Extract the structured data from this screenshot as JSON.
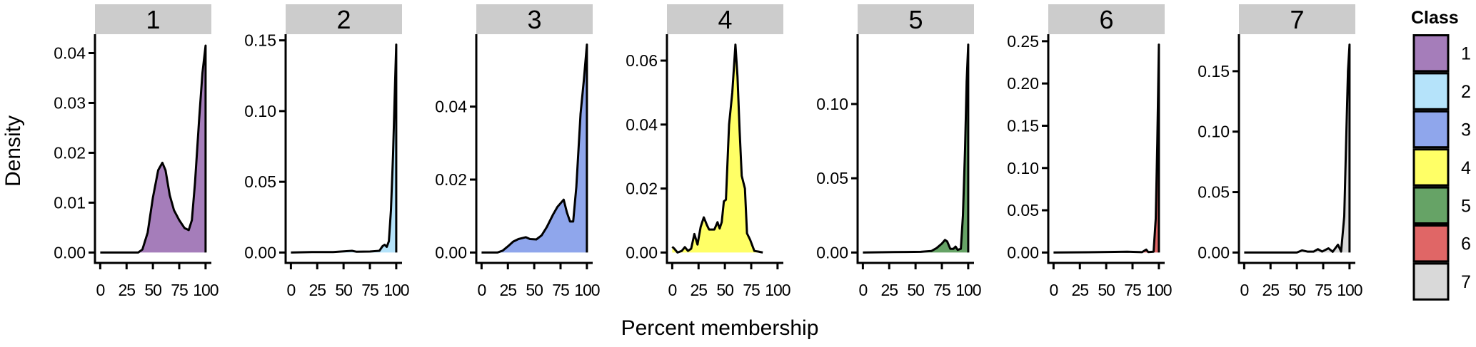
{
  "chart_data": {
    "type": "area",
    "subtype": "faceted density",
    "xlabel": "Percent membership",
    "ylabel": "Density",
    "grid": false,
    "legend": {
      "title": "Class",
      "placement": "right",
      "entries": [
        {
          "label": "1",
          "color": "#A57DBA"
        },
        {
          "label": "2",
          "color": "#B5E3FA"
        },
        {
          "label": "3",
          "color": "#8FA6EC"
        },
        {
          "label": "4",
          "color": "#FFFF66"
        },
        {
          "label": "5",
          "color": "#66A366"
        },
        {
          "label": "6",
          "color": "#E06666"
        },
        {
          "label": "7",
          "color": "#D9D9D9"
        }
      ]
    },
    "xlim": [
      0,
      100
    ],
    "xticks": [
      "0",
      "25",
      "50",
      "75",
      "100"
    ],
    "facets": [
      {
        "label": "1",
        "color": "#A57DBA",
        "ylim": [
          0,
          0.0417
        ],
        "yticks": [
          "0.00",
          "0.01",
          "0.02",
          "0.03",
          "0.04"
        ],
        "yvals": [
          0,
          0.01,
          0.02,
          0.03,
          0.04
        ],
        "points": [
          [
            0,
            0
          ],
          [
            36,
            0
          ],
          [
            40,
            0.0006
          ],
          [
            45,
            0.004
          ],
          [
            50,
            0.011
          ],
          [
            55,
            0.0165
          ],
          [
            59,
            0.018
          ],
          [
            62,
            0.0165
          ],
          [
            66,
            0.0115
          ],
          [
            70,
            0.0085
          ],
          [
            75,
            0.0065
          ],
          [
            80,
            0.0049
          ],
          [
            84,
            0.0045
          ],
          [
            87,
            0.0065
          ],
          [
            90,
            0.014
          ],
          [
            94,
            0.027
          ],
          [
            97,
            0.036
          ],
          [
            100,
            0.0415
          ]
        ]
      },
      {
        "label": "2",
        "color": "#B5E3FA",
        "ylim": [
          0,
          0.147
        ],
        "yticks": [
          "0.00",
          "0.05",
          "0.10",
          "0.15"
        ],
        "yvals": [
          0,
          0.05,
          0.1,
          0.15
        ],
        "points": [
          [
            0,
            0
          ],
          [
            20,
            0.0003
          ],
          [
            40,
            0.0003
          ],
          [
            58,
            0.0012
          ],
          [
            62,
            0.0006
          ],
          [
            75,
            0.0007
          ],
          [
            84,
            0.0012
          ],
          [
            87,
            0.0045
          ],
          [
            89,
            0.0055
          ],
          [
            91,
            0.004
          ],
          [
            93,
            0.008
          ],
          [
            95,
            0.03
          ],
          [
            97,
            0.07
          ],
          [
            98.5,
            0.11
          ],
          [
            100,
            0.147
          ]
        ]
      },
      {
        "label": "3",
        "color": "#8FA6EC",
        "ylim": [
          0,
          0.057
        ],
        "yticks": [
          "0.00",
          "0.02",
          "0.04"
        ],
        "yvals": [
          0,
          0.02,
          0.04
        ],
        "points": [
          [
            0,
            0
          ],
          [
            15,
            0
          ],
          [
            20,
            0.0005
          ],
          [
            25,
            0.0017
          ],
          [
            30,
            0.003
          ],
          [
            35,
            0.0037
          ],
          [
            42,
            0.0042
          ],
          [
            46,
            0.0037
          ],
          [
            52,
            0.0036
          ],
          [
            57,
            0.0047
          ],
          [
            62,
            0.007
          ],
          [
            68,
            0.0105
          ],
          [
            72,
            0.0125
          ],
          [
            78,
            0.0145
          ],
          [
            81,
            0.011
          ],
          [
            84,
            0.0085
          ],
          [
            87,
            0.0085
          ],
          [
            90,
            0.018
          ],
          [
            94,
            0.038
          ],
          [
            97,
            0.047
          ],
          [
            100,
            0.057
          ]
        ]
      },
      {
        "label": "4",
        "color": "#FFFF66",
        "ylim": [
          0,
          0.065
        ],
        "yticks": [
          "0.00",
          "0.02",
          "0.04",
          "0.06"
        ],
        "yvals": [
          0,
          0.02,
          0.04,
          0.06
        ],
        "points": [
          [
            0,
            0.0018
          ],
          [
            2,
            0.0012
          ],
          [
            5,
            0
          ],
          [
            9,
            0.0005
          ],
          [
            12,
            0.0017
          ],
          [
            15,
            0.0005
          ],
          [
            18,
            0.0012
          ],
          [
            21,
            0.0058
          ],
          [
            24,
            0.0025
          ],
          [
            27,
            0.008
          ],
          [
            30,
            0.011
          ],
          [
            33,
            0.0085
          ],
          [
            35,
            0.0072
          ],
          [
            40,
            0.0072
          ],
          [
            43,
            0.0095
          ],
          [
            45,
            0.0075
          ],
          [
            47,
            0.0095
          ],
          [
            49,
            0.016
          ],
          [
            51,
            0.0165
          ],
          [
            54,
            0.04
          ],
          [
            57,
            0.05
          ],
          [
            60,
            0.065
          ],
          [
            62,
            0.055
          ],
          [
            64,
            0.038
          ],
          [
            66,
            0.024
          ],
          [
            69,
            0.02
          ],
          [
            71,
            0.006
          ],
          [
            74,
            0.004
          ],
          [
            78,
            0.0005
          ],
          [
            82,
            0.0003
          ],
          [
            86,
            0
          ]
        ]
      },
      {
        "label": "5",
        "color": "#66A366",
        "ylim": [
          0,
          0.14
        ],
        "yticks": [
          "0.00",
          "0.05",
          "0.10"
        ],
        "yvals": [
          0,
          0.05,
          0.1
        ],
        "points": [
          [
            0,
            0
          ],
          [
            30,
            0.0003
          ],
          [
            55,
            0.0005
          ],
          [
            65,
            0.001
          ],
          [
            70,
            0.003
          ],
          [
            75,
            0.006
          ],
          [
            78,
            0.0085
          ],
          [
            80,
            0.0075
          ],
          [
            83,
            0.0025
          ],
          [
            86,
            0.0025
          ],
          [
            88,
            0.004
          ],
          [
            90,
            0.0018
          ],
          [
            93,
            0.0025
          ],
          [
            95,
            0.025
          ],
          [
            97,
            0.07
          ],
          [
            98.5,
            0.115
          ],
          [
            100,
            0.14
          ]
        ]
      },
      {
        "label": "6",
        "color": "#E06666",
        "ylim": [
          0,
          0.246
        ],
        "yticks": [
          "0.00",
          "0.05",
          "0.10",
          "0.15",
          "0.20",
          "0.25"
        ],
        "yvals": [
          0,
          0.05,
          0.1,
          0.15,
          0.2,
          0.25
        ],
        "points": [
          [
            0,
            0
          ],
          [
            40,
            0.0004
          ],
          [
            70,
            0.001
          ],
          [
            84,
            0.0004
          ],
          [
            88,
            0.0035
          ],
          [
            90,
            0.0005
          ],
          [
            95,
            0.001
          ],
          [
            97,
            0.04
          ],
          [
            98.5,
            0.13
          ],
          [
            100,
            0.246
          ]
        ]
      },
      {
        "label": "7",
        "color": "#D9D9D9",
        "ylim": [
          0,
          0.172
        ],
        "yticks": [
          "0.00",
          "0.05",
          "0.10",
          "0.15"
        ],
        "yvals": [
          0,
          0.05,
          0.1,
          0.15
        ],
        "points": [
          [
            0,
            0
          ],
          [
            50,
            0
          ],
          [
            55,
            0.0018
          ],
          [
            60,
            0.0008
          ],
          [
            66,
            0.0008
          ],
          [
            70,
            0.0028
          ],
          [
            74,
            0.0008
          ],
          [
            80,
            0.0035
          ],
          [
            84,
            0.0006
          ],
          [
            89,
            0.0065
          ],
          [
            92,
            0.0008
          ],
          [
            95,
            0.03
          ],
          [
            97,
            0.1
          ],
          [
            98.5,
            0.15
          ],
          [
            100,
            0.172
          ]
        ]
      }
    ]
  }
}
